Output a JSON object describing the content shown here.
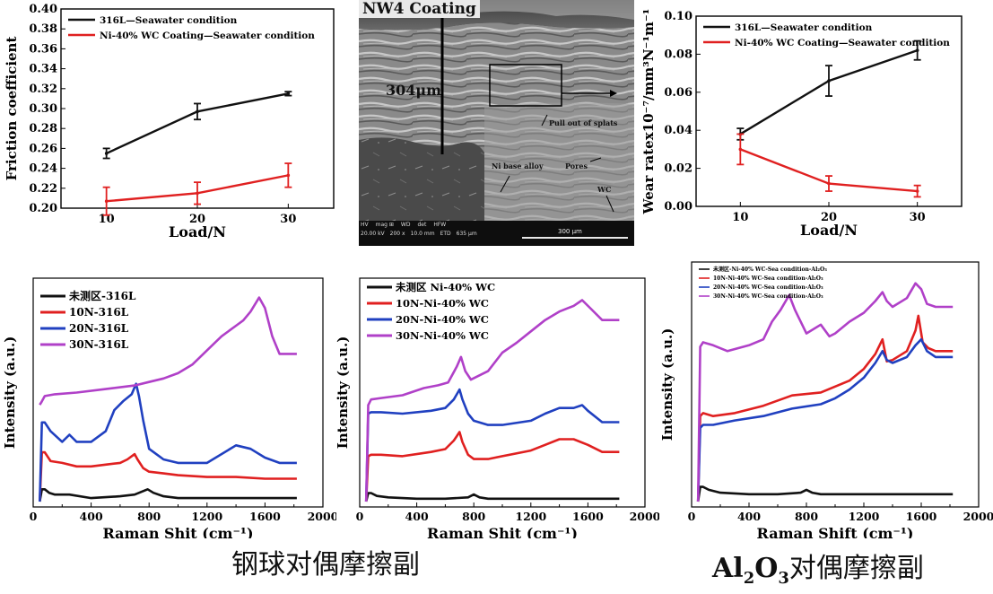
{
  "chart_data": [
    {
      "type": "line",
      "xlabel": "Load/N",
      "ylabel": "Friction coefficient",
      "xlim": [
        5,
        35
      ],
      "ylim": [
        0.2,
        0.4
      ],
      "x_ticks": [
        "10",
        "20",
        "30"
      ],
      "y_ticks": [
        "0.20",
        "0.22",
        "0.24",
        "0.26",
        "0.28",
        "0.30",
        "0.32",
        "0.34",
        "0.36",
        "0.38",
        "0.40"
      ],
      "legend_position": "top-left",
      "series": [
        {
          "name": "316L—Seawater condition",
          "color": "#111111",
          "x": [
            10,
            20,
            30
          ],
          "y": [
            0.255,
            0.297,
            0.315
          ],
          "err": [
            0.005,
            0.008,
            0.002
          ]
        },
        {
          "name": "Ni-40% WC Coating—Seawater condition",
          "color": "#e02020",
          "x": [
            10,
            20,
            30
          ],
          "y": [
            0.207,
            0.215,
            0.233
          ],
          "err": [
            0.014,
            0.011,
            0.012
          ]
        }
      ]
    },
    {
      "type": "line",
      "xlabel": "Load/N",
      "ylabel": "Wear ratex10⁻⁷/mm³N⁻¹m⁻¹",
      "xlim": [
        5,
        35
      ],
      "ylim": [
        0.0,
        0.1
      ],
      "x_ticks": [
        "10",
        "20",
        "30"
      ],
      "y_ticks": [
        "0.00",
        "0.02",
        "0.04",
        "0.06",
        "0.08",
        "0.10"
      ],
      "legend_position": "top-left",
      "series": [
        {
          "name": "316L—Seawater condition",
          "color": "#111111",
          "x": [
            10,
            20,
            30
          ],
          "y": [
            0.038,
            0.066,
            0.082
          ],
          "err": [
            0.003,
            0.008,
            0.005
          ]
        },
        {
          "name": "Ni-40% WC Coating—Seawater condition",
          "color": "#e02020",
          "x": [
            10,
            20,
            30
          ],
          "y": [
            0.03,
            0.012,
            0.008
          ],
          "err": [
            0.008,
            0.004,
            0.003
          ]
        }
      ]
    },
    {
      "type": "line",
      "xlabel": "Raman Shit (cm⁻¹)",
      "ylabel": "Intensity (a.u.)",
      "xlim": [
        0,
        2000
      ],
      "x_ticks": [
        "0",
        "400",
        "800",
        "1200",
        "1600",
        "2000"
      ],
      "legend_position": "top-left",
      "series": [
        {
          "name": "未测区-316L",
          "color": "#111111",
          "x": [
            45,
            60,
            80,
            110,
            150,
            250,
            400,
            600,
            700,
            790,
            830,
            900,
            1000,
            1200,
            1400,
            1600,
            1820
          ],
          "y": [
            0.0,
            0.07,
            0.07,
            0.05,
            0.04,
            0.04,
            0.02,
            0.03,
            0.04,
            0.07,
            0.05,
            0.03,
            0.02,
            0.02,
            0.02,
            0.02,
            0.02
          ]
        },
        {
          "name": "10N-316L",
          "color": "#e02020",
          "x": [
            45,
            60,
            80,
            120,
            200,
            300,
            400,
            500,
            600,
            650,
            700,
            720,
            760,
            800,
            900,
            1000,
            1200,
            1400,
            1600,
            1820
          ],
          "y": [
            0.0,
            0.28,
            0.28,
            0.23,
            0.22,
            0.2,
            0.2,
            0.21,
            0.22,
            0.24,
            0.27,
            0.24,
            0.19,
            0.17,
            0.16,
            0.15,
            0.14,
            0.14,
            0.13,
            0.13
          ]
        },
        {
          "name": "20N-316L",
          "color": "#2040c0",
          "x": [
            45,
            60,
            80,
            120,
            200,
            250,
            300,
            400,
            500,
            560,
            620,
            680,
            710,
            730,
            760,
            800,
            900,
            1000,
            1200,
            1400,
            1500,
            1600,
            1700,
            1820
          ],
          "y": [
            0.0,
            0.45,
            0.45,
            0.4,
            0.34,
            0.38,
            0.34,
            0.34,
            0.4,
            0.52,
            0.57,
            0.61,
            0.67,
            0.6,
            0.46,
            0.3,
            0.24,
            0.22,
            0.22,
            0.32,
            0.3,
            0.25,
            0.22,
            0.22
          ]
        },
        {
          "name": "30N-316L",
          "color": "#b040c8",
          "x": [
            45,
            60,
            80,
            150,
            300,
            500,
            700,
            800,
            900,
            1000,
            1100,
            1200,
            1300,
            1400,
            1450,
            1500,
            1560,
            1600,
            1650,
            1700,
            1820
          ],
          "y": [
            0.55,
            0.57,
            0.6,
            0.61,
            0.62,
            0.64,
            0.66,
            0.68,
            0.7,
            0.73,
            0.78,
            0.86,
            0.94,
            1.0,
            1.03,
            1.08,
            1.16,
            1.1,
            0.94,
            0.84,
            0.84
          ]
        }
      ]
    },
    {
      "type": "line",
      "xlabel": "Raman Shit (cm⁻¹)",
      "ylabel": "Intensity (a.u.)",
      "xlim": [
        0,
        2000
      ],
      "x_ticks": [
        "0",
        "400",
        "800",
        "1200",
        "1600",
        "2000"
      ],
      "legend_position": "top-left",
      "series": [
        {
          "name": "未测区 Ni-40% WC",
          "color": "#111111",
          "x": [
            45,
            60,
            80,
            120,
            200,
            400,
            600,
            760,
            800,
            840,
            900,
            1000,
            1200,
            1400,
            1600,
            1820
          ],
          "y": [
            0.0,
            0.06,
            0.06,
            0.04,
            0.03,
            0.02,
            0.02,
            0.03,
            0.05,
            0.03,
            0.02,
            0.02,
            0.02,
            0.02,
            0.02,
            0.02
          ]
        },
        {
          "name": "10N-Ni-40% WC",
          "color": "#e02020",
          "x": [
            45,
            60,
            80,
            150,
            300,
            500,
            600,
            660,
            700,
            720,
            760,
            800,
            900,
            1000,
            1200,
            1300,
            1400,
            1500,
            1600,
            1700,
            1820
          ],
          "y": [
            0.0,
            0.32,
            0.33,
            0.33,
            0.32,
            0.35,
            0.37,
            0.43,
            0.49,
            0.42,
            0.33,
            0.3,
            0.3,
            0.32,
            0.36,
            0.4,
            0.44,
            0.44,
            0.4,
            0.35,
            0.35
          ]
        },
        {
          "name": "20N-Ni-40% WC",
          "color": "#2040c0",
          "x": [
            45,
            60,
            80,
            150,
            300,
            500,
            600,
            660,
            700,
            720,
            760,
            800,
            900,
            1000,
            1200,
            1300,
            1400,
            1500,
            1560,
            1600,
            1700,
            1820
          ],
          "y": [
            0.0,
            0.62,
            0.63,
            0.63,
            0.62,
            0.64,
            0.66,
            0.72,
            0.79,
            0.72,
            0.62,
            0.57,
            0.54,
            0.54,
            0.57,
            0.62,
            0.66,
            0.66,
            0.68,
            0.64,
            0.56,
            0.56
          ]
        },
        {
          "name": "30N-Ni-40% WC",
          "color": "#b040c8",
          "x": [
            45,
            60,
            80,
            150,
            300,
            450,
            550,
            620,
            680,
            710,
            740,
            780,
            900,
            1000,
            1100,
            1200,
            1300,
            1400,
            1500,
            1560,
            1620,
            1700,
            1820
          ],
          "y": [
            0.0,
            0.68,
            0.72,
            0.73,
            0.75,
            0.8,
            0.82,
            0.84,
            0.95,
            1.02,
            0.92,
            0.86,
            0.92,
            1.05,
            1.12,
            1.2,
            1.28,
            1.34,
            1.38,
            1.42,
            1.36,
            1.28,
            1.28
          ]
        }
      ]
    },
    {
      "type": "line",
      "xlabel": "Raman Shift (cm⁻¹)",
      "ylabel": "Intensity (a.u.)",
      "xlim": [
        0,
        2000
      ],
      "x_ticks": [
        "0",
        "400",
        "800",
        "1200",
        "1600",
        "2000"
      ],
      "legend_position": "top-left",
      "series": [
        {
          "name": "未测区-Ni-40% WC-Sea condition-Al₂O₃",
          "color": "#111111",
          "x": [
            45,
            60,
            80,
            120,
            200,
            400,
            600,
            760,
            800,
            840,
            900,
            1000,
            1200,
            1400,
            1600,
            1820
          ],
          "y": [
            0.0,
            0.1,
            0.1,
            0.08,
            0.06,
            0.05,
            0.05,
            0.06,
            0.08,
            0.06,
            0.05,
            0.05,
            0.05,
            0.05,
            0.05,
            0.05
          ]
        },
        {
          "name": "10N-Ni-40% WC-Sea condition-Al₂O₃",
          "color": "#e02020",
          "x": [
            45,
            60,
            80,
            150,
            300,
            500,
            700,
            900,
            1000,
            1100,
            1200,
            1280,
            1330,
            1360,
            1400,
            1500,
            1560,
            1580,
            1610,
            1650,
            1700,
            1820
          ],
          "y": [
            0.0,
            0.58,
            0.6,
            0.58,
            0.6,
            0.65,
            0.72,
            0.74,
            0.78,
            0.82,
            0.9,
            1.0,
            1.1,
            0.95,
            0.96,
            1.02,
            1.16,
            1.26,
            1.08,
            1.04,
            1.02,
            1.02
          ]
        },
        {
          "name": "20N-Ni-40% WC-Sea condition-Al₂O₃",
          "color": "#2040c0",
          "x": [
            45,
            60,
            80,
            150,
            300,
            500,
            700,
            900,
            1000,
            1100,
            1200,
            1280,
            1330,
            1360,
            1400,
            1500,
            1560,
            1600,
            1640,
            1700,
            1820
          ],
          "y": [
            0.0,
            0.5,
            0.52,
            0.52,
            0.55,
            0.58,
            0.63,
            0.66,
            0.7,
            0.76,
            0.84,
            0.94,
            1.02,
            0.96,
            0.94,
            0.98,
            1.06,
            1.1,
            1.02,
            0.98,
            0.98
          ]
        },
        {
          "name": "30N-Ni-40% WC-Sea condition-Al₂O₃",
          "color": "#b040c8",
          "x": [
            45,
            60,
            80,
            150,
            250,
            400,
            500,
            560,
            620,
            680,
            720,
            800,
            900,
            960,
            1000,
            1100,
            1200,
            1280,
            1330,
            1360,
            1400,
            1500,
            1560,
            1600,
            1640,
            1700,
            1820
          ],
          "y": [
            0.0,
            1.05,
            1.08,
            1.06,
            1.02,
            1.06,
            1.1,
            1.22,
            1.3,
            1.4,
            1.3,
            1.14,
            1.2,
            1.12,
            1.14,
            1.22,
            1.28,
            1.36,
            1.42,
            1.36,
            1.32,
            1.38,
            1.48,
            1.44,
            1.34,
            1.32,
            1.32
          ]
        }
      ]
    }
  ],
  "sem_image": {
    "title": "NW4 Coating",
    "thickness_label": "304μm",
    "annotations": {
      "pull_out": "Pull out of splats",
      "ni_base": "Ni base alloy",
      "pores": "Pores",
      "wc": "WC"
    },
    "databar": {
      "row1": [
        "HV",
        "mag ⊞",
        "WD",
        "det",
        "HFW"
      ],
      "row2": [
        "20.00 kV",
        "200 x",
        "10.0 mm",
        "ETD",
        "635 μm"
      ],
      "scale": "300 μm"
    }
  },
  "captions": {
    "steel_ball": "钢球对偶摩擦副",
    "al2o3_prefix": "Al",
    "al2o3_sub1": "2",
    "al2o3_mid": "O",
    "al2o3_sub2": "3",
    "al2o3_suffix": "对偶摩擦副"
  }
}
